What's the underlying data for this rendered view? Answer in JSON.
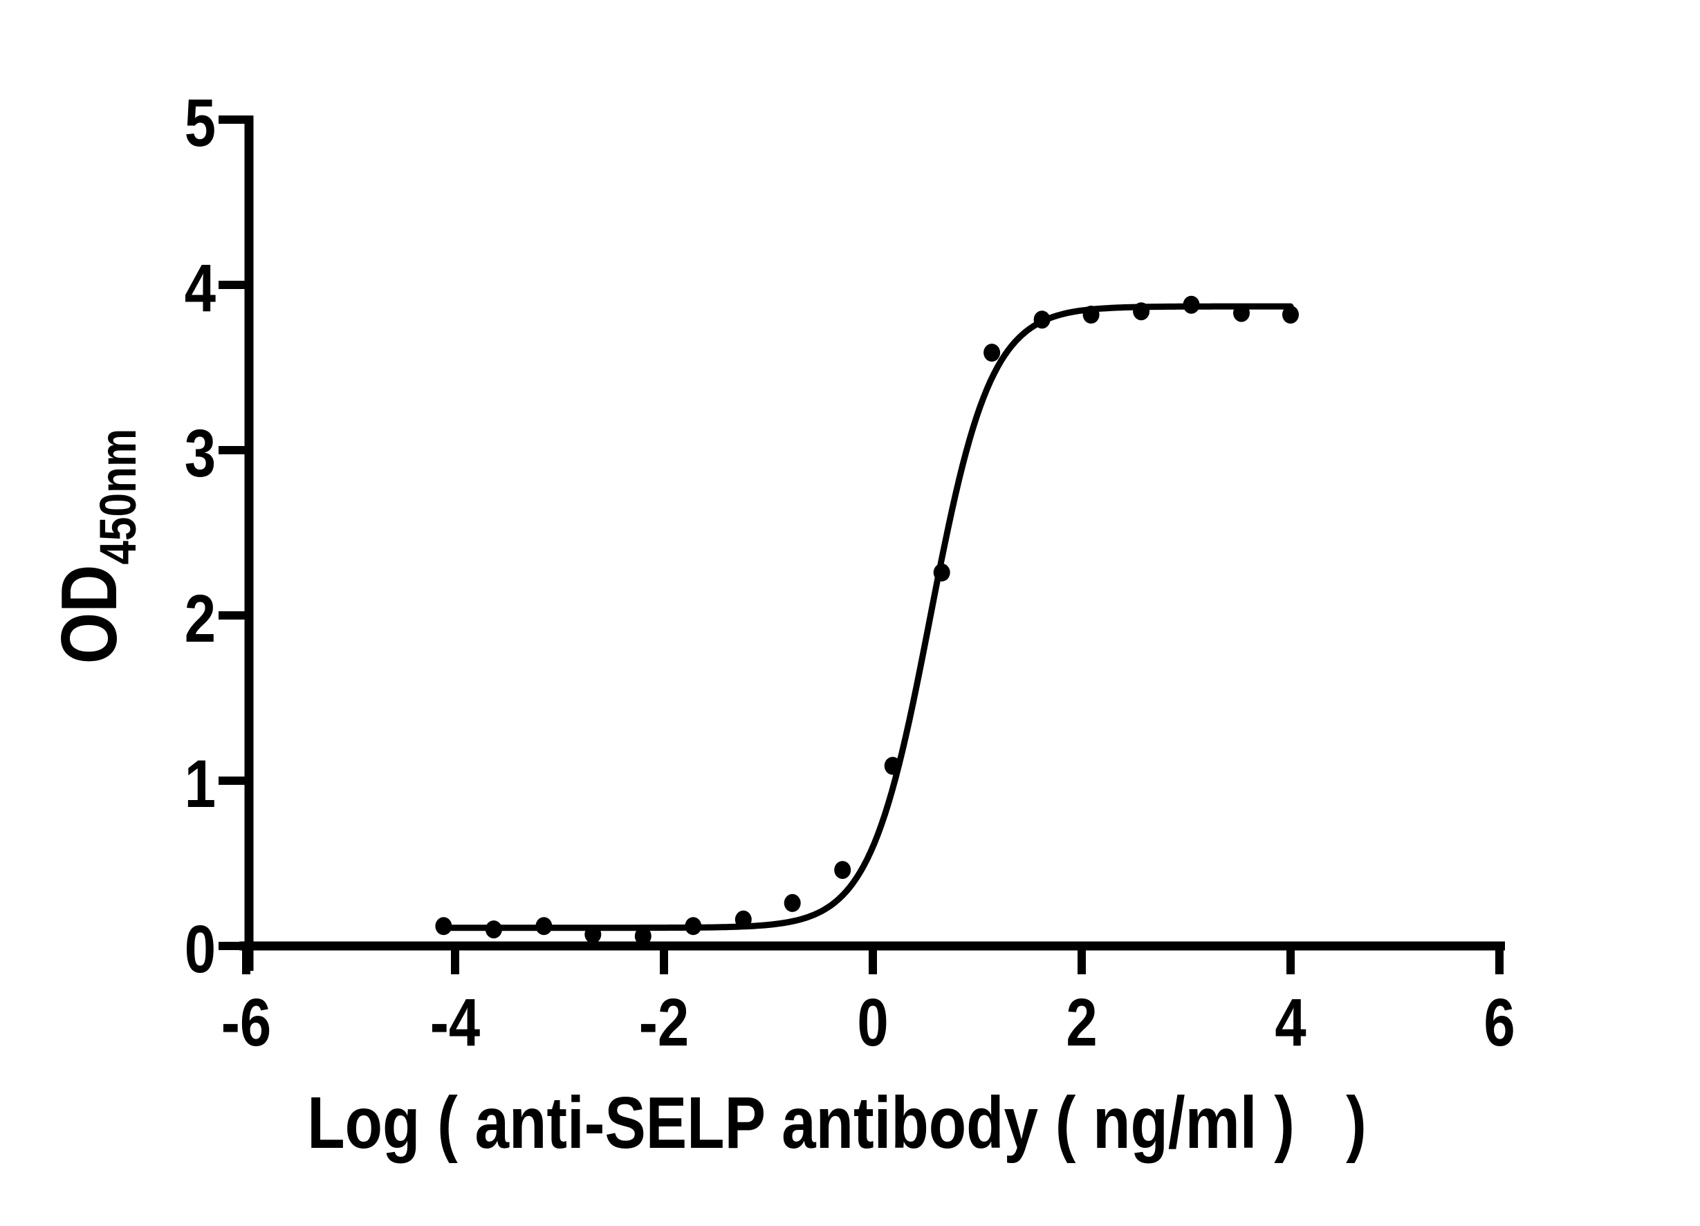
{
  "figure": {
    "background": "#ffffff",
    "ink_color": "#000000"
  },
  "chart_data": {
    "type": "scatter",
    "title": "",
    "xlabel": "Log ( anti-SELP antibody ( ng/ml )   )",
    "ylabel": {
      "main": "OD",
      "sub": "450nm"
    },
    "xlim": [
      -6,
      6
    ],
    "ylim": [
      0,
      5
    ],
    "x_ticks": [
      -6,
      -4,
      -2,
      0,
      2,
      4,
      6
    ],
    "y_ticks": [
      0,
      1,
      2,
      3,
      4,
      5
    ],
    "grid": false,
    "legend": "none",
    "marker": {
      "shape": "circle",
      "color": "#000000",
      "radius_px": 12
    },
    "curve": {
      "model": "4PL sigmoidal fit",
      "color": "#000000",
      "bottom": 0.11,
      "top": 3.87,
      "log_ec50": 0.55,
      "hill_slope": 1.5,
      "x_start": -4.11,
      "x_end": 4.0
    },
    "points": [
      [
        -4.11,
        0.12
      ],
      [
        -3.63,
        0.1
      ],
      [
        -3.15,
        0.12
      ],
      [
        -2.68,
        0.07
      ],
      [
        -2.2,
        0.06
      ],
      [
        -1.72,
        0.12
      ],
      [
        -1.24,
        0.16
      ],
      [
        -0.77,
        0.26
      ],
      [
        -0.29,
        0.46
      ],
      [
        0.19,
        1.09
      ],
      [
        0.66,
        2.26
      ],
      [
        1.14,
        3.59
      ],
      [
        1.62,
        3.79
      ],
      [
        2.09,
        3.82
      ],
      [
        2.57,
        3.84
      ],
      [
        3.05,
        3.88
      ],
      [
        3.53,
        3.83
      ],
      [
        4.0,
        3.82
      ]
    ]
  }
}
